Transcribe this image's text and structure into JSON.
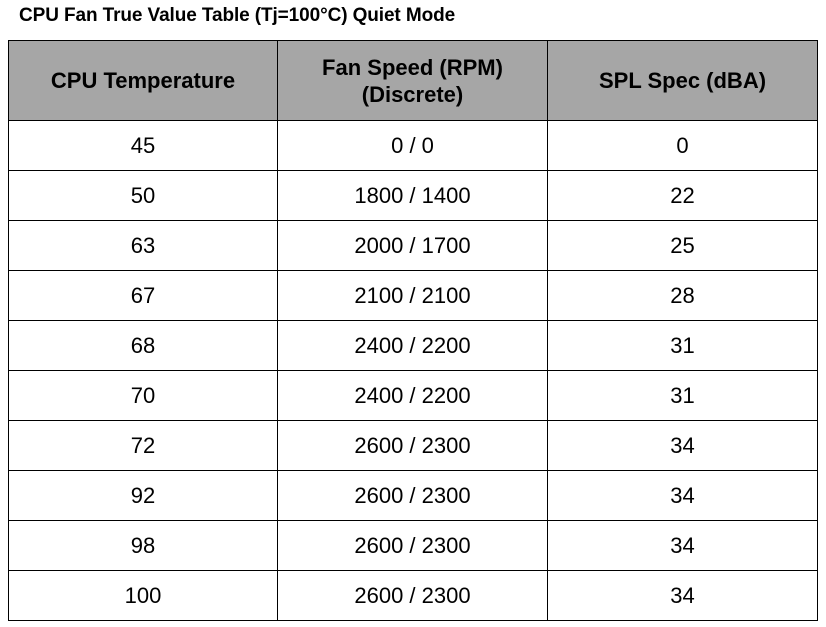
{
  "title": "CPU Fan True Value Table (Tj=100°C) Quiet Mode",
  "table": {
    "headers": [
      {
        "line1": "CPU Temperature",
        "line2": ""
      },
      {
        "line1": "Fan Speed (RPM)",
        "line2": "(Discrete)"
      },
      {
        "line1": "SPL Spec (dBA)",
        "line2": ""
      }
    ],
    "rows": [
      {
        "temp": "45",
        "fan_speed": "0 / 0",
        "spl": "0"
      },
      {
        "temp": "50",
        "fan_speed": "1800 / 1400",
        "spl": "22"
      },
      {
        "temp": "63",
        "fan_speed": "2000 / 1700",
        "spl": "25"
      },
      {
        "temp": "67",
        "fan_speed": "2100 / 2100",
        "spl": "28"
      },
      {
        "temp": "68",
        "fan_speed": "2400 / 2200",
        "spl": "31"
      },
      {
        "temp": "70",
        "fan_speed": "2400 / 2200",
        "spl": "31"
      },
      {
        "temp": "72",
        "fan_speed": "2600 / 2300",
        "spl": "34"
      },
      {
        "temp": "92",
        "fan_speed": "2600 / 2300",
        "spl": "34"
      },
      {
        "temp": "98",
        "fan_speed": "2600 / 2300",
        "spl": "34"
      },
      {
        "temp": "100",
        "fan_speed": "2600 / 2300",
        "spl": "34"
      }
    ]
  },
  "colors": {
    "header_background": "#a6a6a6",
    "border": "#000000",
    "text": "#000000"
  }
}
